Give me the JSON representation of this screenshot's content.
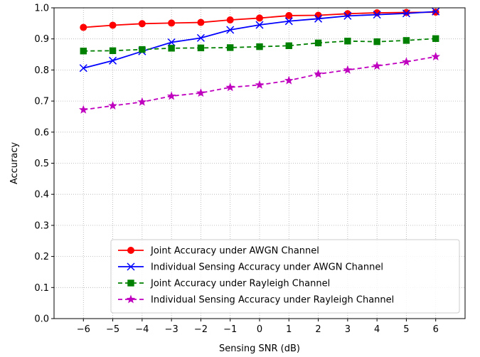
{
  "chart_data": {
    "type": "line",
    "title": "",
    "xlabel": "Sensing SNR (dB)",
    "ylabel": "Accuracy",
    "xlim": [
      -7,
      7
    ],
    "ylim": [
      0.0,
      1.0
    ],
    "x": [
      -6,
      -5,
      -4,
      -3,
      -2,
      -1,
      0,
      1,
      2,
      3,
      4,
      5,
      6
    ],
    "x_tick_labels": [
      "−6",
      "−5",
      "−4",
      "−3",
      "−2",
      "−1",
      "0",
      "1",
      "2",
      "3",
      "4",
      "5",
      "6"
    ],
    "y_ticks": [
      0.0,
      0.1,
      0.2,
      0.3,
      0.4,
      0.5,
      0.6,
      0.7,
      0.8,
      0.9,
      1.0
    ],
    "y_tick_labels": [
      "0.0",
      "0.1",
      "0.2",
      "0.3",
      "0.4",
      "0.5",
      "0.6",
      "0.7",
      "0.8",
      "0.9",
      "1.0"
    ],
    "grid": true,
    "legend_position": "lower-right",
    "series": [
      {
        "name": "Joint Accuracy under AWGN Channel",
        "color": "#ff0000",
        "line_style": "solid",
        "marker": "circle",
        "values": [
          0.937,
          0.944,
          0.949,
          0.951,
          0.953,
          0.961,
          0.967,
          0.975,
          0.976,
          0.981,
          0.984,
          0.985,
          0.986
        ]
      },
      {
        "name": "Individual Sensing Accuracy under AWGN Channel",
        "color": "#0000ff",
        "line_style": "solid",
        "marker": "x",
        "values": [
          0.806,
          0.83,
          0.86,
          0.889,
          0.903,
          0.929,
          0.945,
          0.957,
          0.965,
          0.974,
          0.978,
          0.982,
          0.988
        ]
      },
      {
        "name": "Joint Accuracy under Rayleigh Channel",
        "color": "#008000",
        "line_style": "dashed",
        "marker": "square",
        "values": [
          0.861,
          0.862,
          0.866,
          0.87,
          0.871,
          0.872,
          0.875,
          0.878,
          0.887,
          0.893,
          0.891,
          0.895,
          0.901
        ]
      },
      {
        "name": "Individual Sensing Accuracy under Rayleigh Channel",
        "color": "#bf00bf",
        "line_style": "dashed",
        "marker": "star",
        "values": [
          0.672,
          0.685,
          0.697,
          0.716,
          0.726,
          0.744,
          0.752,
          0.766,
          0.787,
          0.8,
          0.813,
          0.826,
          0.843
        ]
      }
    ]
  }
}
